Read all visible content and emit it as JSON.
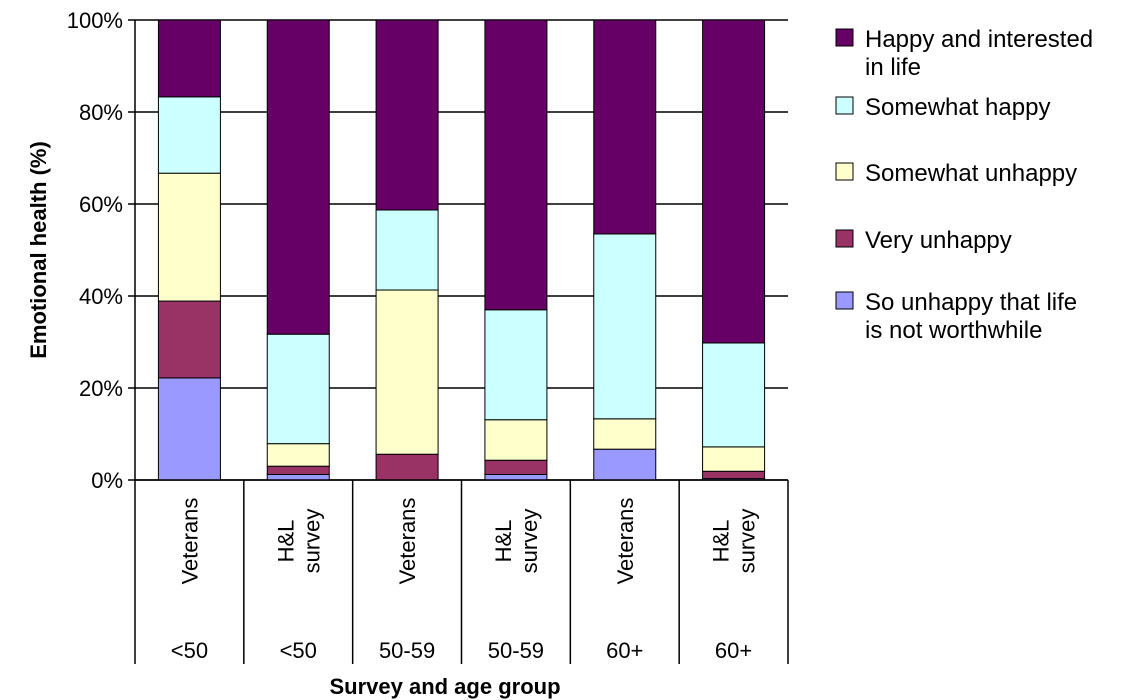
{
  "chart_data": {
    "type": "bar",
    "stacked": true,
    "percent": true,
    "title": "",
    "ylabel": "Emotional health (%)",
    "xlabel": "Survey and age group",
    "ylim": [
      0,
      100
    ],
    "yticks": [
      "0%",
      "20%",
      "40%",
      "60%",
      "80%",
      "100%"
    ],
    "categories": [
      {
        "label": [
          "Veterans"
        ],
        "group": "<50"
      },
      {
        "label": [
          "H&L",
          "survey"
        ],
        "group": "<50"
      },
      {
        "label": [
          "Veterans"
        ],
        "group": "50-59"
      },
      {
        "label": [
          "H&L",
          "survey"
        ],
        "group": "50-59"
      },
      {
        "label": [
          "Veterans"
        ],
        "group": "60+"
      },
      {
        "label": [
          "H&L",
          "survey"
        ],
        "group": "60+"
      }
    ],
    "series": [
      {
        "name": "So unhappy that life is not worthwhile",
        "legend_lines": [
          "So unhappy that life",
          "is not worthwhile"
        ],
        "color": "#9999ff",
        "values": [
          22.2,
          1.2,
          0,
          1.2,
          6.7,
          0.3
        ]
      },
      {
        "name": "Very unhappy",
        "legend_lines": [
          "Very unhappy"
        ],
        "color": "#993366",
        "values": [
          16.7,
          1.8,
          5.6,
          3.1,
          0,
          1.6
        ]
      },
      {
        "name": "Somewhat unhappy",
        "legend_lines": [
          "Somewhat unhappy"
        ],
        "color": "#ffffcc",
        "values": [
          27.8,
          4.9,
          35.7,
          8.8,
          6.6,
          5.3
        ]
      },
      {
        "name": "Somewhat happy",
        "legend_lines": [
          "Somewhat happy"
        ],
        "color": "#ccffff",
        "values": [
          16.6,
          23.8,
          17.4,
          23.9,
          40.2,
          22.6
        ]
      },
      {
        "name": "Happy and interested in life",
        "legend_lines": [
          "Happy and interested",
          "in life"
        ],
        "color": "#660066",
        "values": [
          16.7,
          68.3,
          41.3,
          63.0,
          46.5,
          70.2
        ]
      }
    ],
    "legend_position": "right",
    "grid": true
  }
}
